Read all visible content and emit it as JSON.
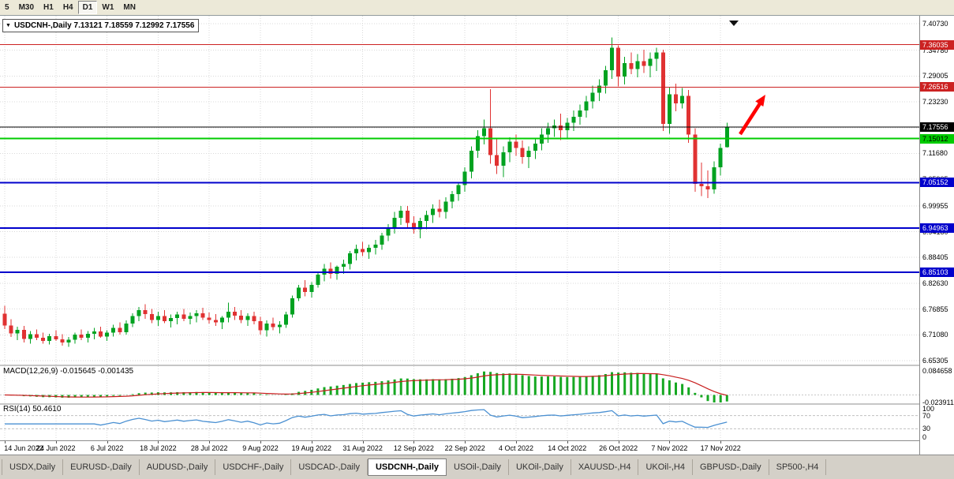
{
  "toolbar": {
    "timeframes": [
      "5",
      "M30",
      "H1",
      "H4",
      "D1",
      "W1",
      "MN"
    ],
    "active": "D1"
  },
  "symbol_bar": {
    "ohlc_label": "USDCNH-,Daily 7.13121 7.18559 7.12992 7.17556"
  },
  "chart_data": {
    "type": "candlestick",
    "symbol": "USDCNH-,Daily",
    "timeframe": "Daily",
    "open": "7.13121",
    "high": "7.18559",
    "low": "7.12992",
    "close": "7.17556",
    "ylim": [
      6.6424,
      7.425
    ],
    "price_axis_labels": [
      "7.40730",
      "7.34780",
      "7.29005",
      "7.23230",
      "7.17455",
      "7.11680",
      "7.05905",
      "6.99955",
      "6.94180",
      "6.88405",
      "6.82630",
      "6.76855",
      "6.71080",
      "6.65305"
    ],
    "date_labels": [
      "14 Jun 2022",
      "24 Jun 2022",
      "6 Jul 2022",
      "18 Jul 2022",
      "28 Jul 2022",
      "9 Aug 2022",
      "19 Aug 2022",
      "31 Aug 2022",
      "12 Sep 2022",
      "22 Sep 2022",
      "4 Oct 2022",
      "14 Oct 2022",
      "26 Oct 2022",
      "7 Nov 2022",
      "17 Nov 2022"
    ],
    "label_every": 8,
    "colors": {
      "bull": "#00A220",
      "bear": "#E03232",
      "grid": "#D9D9D9"
    },
    "levels": [
      {
        "price": "7.36035",
        "color": "#CC2222",
        "width": 1
      },
      {
        "price": "7.26516",
        "color": "#CC2222",
        "width": 1
      },
      {
        "price": "7.17556",
        "color": "#000000",
        "width": 1,
        "role": "current-price"
      },
      {
        "price": "7.15012",
        "color": "#00CC00",
        "width": 2,
        "text_color": "#000000"
      },
      {
        "price": "7.05152",
        "color": "#0000CC",
        "width": 2
      },
      {
        "price": "6.94963",
        "color": "#0000CC",
        "width": 2
      },
      {
        "price": "6.85103",
        "color": "#0000CC",
        "width": 2
      }
    ],
    "arrow": {
      "color": "#FF0000",
      "direction": "up-right"
    },
    "candles": [
      [
        6.758,
        6.776,
        6.724,
        6.732
      ],
      [
        6.732,
        6.746,
        6.706,
        6.714
      ],
      [
        6.714,
        6.729,
        6.699,
        6.722
      ],
      [
        6.722,
        6.731,
        6.694,
        6.702
      ],
      [
        6.702,
        6.719,
        6.691,
        6.712
      ],
      [
        6.712,
        6.723,
        6.699,
        6.704
      ],
      [
        6.704,
        6.716,
        6.691,
        6.697
      ],
      [
        6.697,
        6.713,
        6.689,
        6.708
      ],
      [
        6.708,
        6.721,
        6.697,
        6.701
      ],
      [
        6.701,
        6.712,
        6.687,
        6.694
      ],
      [
        6.694,
        6.706,
        6.684,
        6.7
      ],
      [
        6.7,
        6.716,
        6.691,
        6.711
      ],
      [
        6.711,
        6.723,
        6.699,
        6.704
      ],
      [
        6.704,
        6.719,
        6.694,
        6.713
      ],
      [
        6.713,
        6.726,
        6.701,
        6.718
      ],
      [
        6.718,
        6.729,
        6.704,
        6.707
      ],
      [
        6.707,
        6.721,
        6.697,
        6.716
      ],
      [
        6.716,
        6.733,
        6.707,
        6.726
      ],
      [
        6.726,
        6.739,
        6.711,
        6.717
      ],
      [
        6.717,
        6.743,
        6.711,
        6.736
      ],
      [
        6.736,
        6.759,
        6.728,
        6.753
      ],
      [
        6.753,
        6.773,
        6.741,
        6.766
      ],
      [
        6.766,
        6.779,
        6.747,
        6.757
      ],
      [
        6.757,
        6.769,
        6.737,
        6.744
      ],
      [
        6.744,
        6.763,
        6.731,
        6.753
      ],
      [
        6.753,
        6.766,
        6.737,
        6.741
      ],
      [
        6.741,
        6.756,
        6.727,
        6.748
      ],
      [
        6.748,
        6.763,
        6.734,
        6.756
      ],
      [
        6.756,
        6.769,
        6.741,
        6.747
      ],
      [
        6.747,
        6.761,
        6.734,
        6.753
      ],
      [
        6.753,
        6.766,
        6.739,
        6.759
      ],
      [
        6.759,
        6.771,
        6.744,
        6.749
      ],
      [
        6.749,
        6.761,
        6.736,
        6.744
      ],
      [
        6.744,
        6.757,
        6.731,
        6.739
      ],
      [
        6.739,
        6.753,
        6.724,
        6.749
      ],
      [
        6.749,
        6.783,
        6.739,
        6.763
      ],
      [
        6.763,
        6.773,
        6.744,
        6.754
      ],
      [
        6.754,
        6.766,
        6.737,
        6.744
      ],
      [
        6.744,
        6.759,
        6.731,
        6.753
      ],
      [
        6.753,
        6.763,
        6.734,
        6.741
      ],
      [
        6.741,
        6.751,
        6.711,
        6.721
      ],
      [
        6.721,
        6.743,
        6.707,
        6.736
      ],
      [
        6.736,
        6.749,
        6.721,
        6.728
      ],
      [
        6.728,
        6.741,
        6.714,
        6.733
      ],
      [
        6.733,
        6.763,
        6.726,
        6.756
      ],
      [
        6.756,
        6.799,
        6.749,
        6.793
      ],
      [
        6.793,
        6.823,
        6.786,
        6.816
      ],
      [
        6.816,
        6.833,
        6.797,
        6.807
      ],
      [
        6.807,
        6.829,
        6.794,
        6.823
      ],
      [
        6.823,
        6.853,
        6.816,
        6.846
      ],
      [
        6.846,
        6.869,
        6.831,
        6.859
      ],
      [
        6.859,
        6.873,
        6.837,
        6.847
      ],
      [
        6.847,
        6.866,
        6.834,
        6.863
      ],
      [
        6.863,
        6.879,
        6.847,
        6.869
      ],
      [
        6.869,
        6.899,
        6.857,
        6.893
      ],
      [
        6.893,
        6.913,
        6.877,
        6.903
      ],
      [
        6.903,
        6.919,
        6.887,
        6.896
      ],
      [
        6.896,
        6.913,
        6.881,
        6.906
      ],
      [
        6.906,
        6.923,
        6.891,
        6.913
      ],
      [
        6.913,
        6.939,
        6.901,
        6.933
      ],
      [
        6.933,
        6.959,
        6.921,
        6.949
      ],
      [
        6.949,
        6.986,
        6.937,
        6.973
      ],
      [
        6.973,
        6.999,
        6.957,
        6.989
      ],
      [
        6.989,
        6.999,
        6.951,
        6.961
      ],
      [
        6.961,
        6.976,
        6.937,
        6.947
      ],
      [
        6.947,
        6.973,
        6.927,
        6.966
      ],
      [
        6.966,
        6.989,
        6.947,
        6.979
      ],
      [
        6.979,
        7.003,
        6.961,
        6.993
      ],
      [
        6.993,
        7.013,
        6.974,
        6.986
      ],
      [
        6.986,
        7.019,
        6.971,
        7.009
      ],
      [
        7.009,
        7.033,
        6.994,
        7.026
      ],
      [
        7.026,
        7.053,
        7.011,
        7.046
      ],
      [
        7.046,
        7.086,
        7.031,
        7.076
      ],
      [
        7.076,
        7.133,
        7.061,
        7.123
      ],
      [
        7.123,
        7.169,
        7.107,
        7.156
      ],
      [
        7.156,
        7.193,
        7.137,
        7.173
      ],
      [
        7.173,
        7.261,
        7.094,
        7.113
      ],
      [
        7.113,
        7.149,
        7.071,
        7.089
      ],
      [
        7.089,
        7.133,
        7.064,
        7.119
      ],
      [
        7.119,
        7.153,
        7.097,
        7.143
      ],
      [
        7.143,
        7.159,
        7.111,
        7.129
      ],
      [
        7.129,
        7.146,
        7.094,
        7.109
      ],
      [
        7.109,
        7.133,
        7.084,
        7.123
      ],
      [
        7.123,
        7.149,
        7.104,
        7.139
      ],
      [
        7.139,
        7.173,
        7.124,
        7.159
      ],
      [
        7.159,
        7.186,
        7.141,
        7.173
      ],
      [
        7.173,
        7.193,
        7.154,
        7.179
      ],
      [
        7.179,
        7.206,
        7.147,
        7.169
      ],
      [
        7.169,
        7.196,
        7.151,
        7.186
      ],
      [
        7.186,
        7.213,
        7.167,
        7.199
      ],
      [
        7.199,
        7.226,
        7.181,
        7.213
      ],
      [
        7.213,
        7.246,
        7.197,
        7.233
      ],
      [
        7.233,
        7.269,
        7.217,
        7.253
      ],
      [
        7.253,
        7.283,
        7.234,
        7.269
      ],
      [
        7.269,
        7.313,
        7.251,
        7.303
      ],
      [
        7.303,
        7.376,
        7.284,
        7.353
      ],
      [
        7.353,
        7.359,
        7.267,
        7.289
      ],
      [
        7.289,
        7.333,
        7.271,
        7.319
      ],
      [
        7.319,
        7.343,
        7.294,
        7.306
      ],
      [
        7.306,
        7.339,
        7.287,
        7.323
      ],
      [
        7.323,
        7.349,
        7.297,
        7.313
      ],
      [
        7.313,
        7.343,
        7.287,
        7.329
      ],
      [
        7.329,
        7.353,
        7.301,
        7.343
      ],
      [
        7.343,
        7.349,
        7.167,
        7.183
      ],
      [
        7.183,
        7.266,
        7.161,
        7.249
      ],
      [
        7.249,
        7.273,
        7.211,
        7.229
      ],
      [
        7.229,
        7.263,
        7.217,
        7.246
      ],
      [
        7.246,
        7.259,
        7.141,
        7.159
      ],
      [
        7.159,
        7.173,
        7.031,
        7.049
      ],
      [
        7.049,
        7.096,
        7.021,
        7.043
      ],
      [
        7.043,
        7.079,
        7.017,
        7.036
      ],
      [
        7.036,
        7.099,
        7.027,
        7.086
      ],
      [
        7.086,
        7.139,
        7.067,
        7.129
      ],
      [
        7.13121,
        7.18559,
        7.12992,
        7.17556
      ]
    ]
  },
  "macd_panel": {
    "label": "MACD(12,26,9) -0.015645 -0.001435",
    "axis_labels": [
      "0.084658",
      "-0.023911"
    ],
    "histogram_color": "#16A822",
    "signal_color": "#C81E1E"
  },
  "rsi_panel": {
    "label": "RSI(14) 50.4610",
    "axis_labels": [
      "100",
      "70",
      "30",
      "0"
    ],
    "levels": [
      70,
      30
    ],
    "line_color": "#4A90D2"
  },
  "tabs": [
    {
      "label": "USDX,Daily",
      "active": false
    },
    {
      "label": "EURUSD-,Daily",
      "active": false
    },
    {
      "label": "AUDUSD-,Daily",
      "active": false
    },
    {
      "label": "USDCHF-,Daily",
      "active": false
    },
    {
      "label": "USDCAD-,Daily",
      "active": false
    },
    {
      "label": "USDCNH-,Daily",
      "active": true
    },
    {
      "label": "USOil-,Daily",
      "active": false
    },
    {
      "label": "UKOil-,Daily",
      "active": false
    },
    {
      "label": "XAUUSD-,H4",
      "active": false
    },
    {
      "label": "UKOil-,H4",
      "active": false
    },
    {
      "label": "GBPUSD-,Daily",
      "active": false
    },
    {
      "label": "SP500-,H4",
      "active": false
    }
  ]
}
